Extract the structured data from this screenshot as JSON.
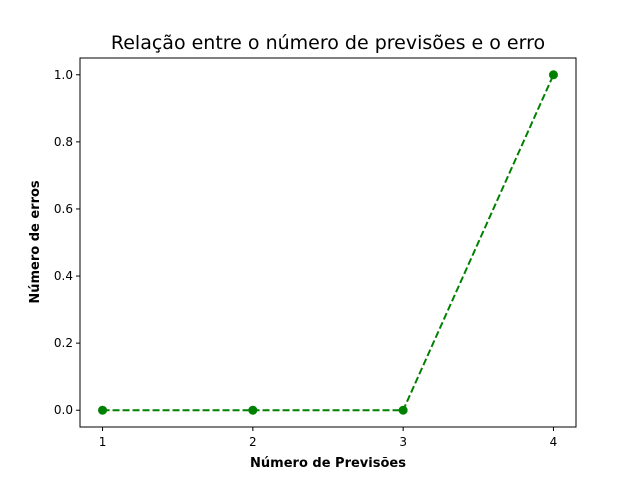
{
  "chart_data": {
    "type": "line",
    "title": "Relação entre o número de previsões e o erro",
    "xlabel": "Número de Previsões",
    "ylabel": "Número de erros",
    "x": [
      1,
      2,
      3,
      4
    ],
    "series": [
      {
        "values": [
          0.0,
          0.0,
          0.0,
          1.0
        ],
        "color": "#008000",
        "linestyle": "dashed",
        "marker": "circle"
      }
    ],
    "xticks": [
      "1",
      "2",
      "3",
      "4"
    ],
    "yticks": [
      "0.0",
      "0.2",
      "0.4",
      "0.6",
      "0.8",
      "1.0"
    ],
    "xlim": [
      0.85,
      4.15
    ],
    "ylim": [
      -0.05,
      1.05
    ],
    "grid": false
  }
}
